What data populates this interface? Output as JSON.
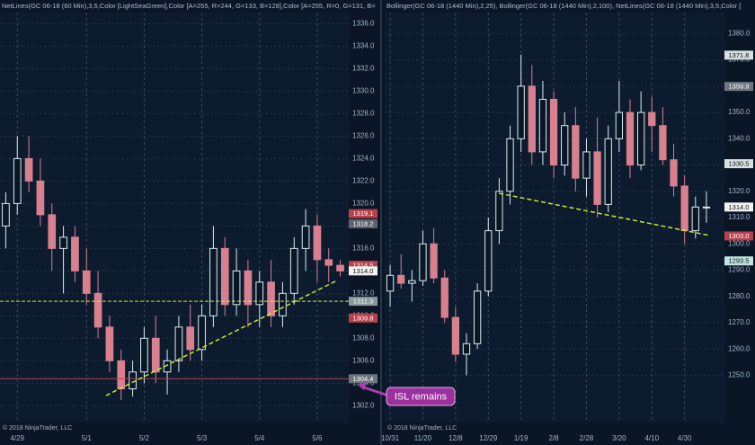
{
  "chart_data": [
    {
      "type": "candlestick",
      "title": "NetLines(GC 06-18 (60 Min),3,5,Color [LightSeaGreen],Color [A=255, R=244, G=133, B=128],Color [A=255, R=0, G=131, B=",
      "credit": "© 2018 NinjaTrader, LLC",
      "categories": [
        null,
        "4/29",
        null,
        null,
        null,
        null,
        null,
        "5/1",
        null,
        null,
        null,
        null,
        "5/2",
        null,
        null,
        null,
        null,
        "5/3",
        null,
        null,
        null,
        null,
        "5/4",
        null,
        null,
        null,
        null,
        "5/6",
        null,
        null
      ],
      "open": [
        1318,
        1320,
        1324,
        1322,
        1319,
        1316,
        1317,
        1314,
        1312,
        1309,
        1306,
        1303.5,
        1305,
        1308,
        1305,
        1306,
        1309,
        1307,
        1310,
        1316,
        1311,
        1314,
        1311,
        1313,
        1310,
        1312,
        1316,
        1318,
        1315,
        1314.5
      ],
      "high": [
        1321,
        1326,
        1326,
        1324,
        1320,
        1318,
        1318,
        1316,
        1314,
        1310,
        1307,
        1306,
        1309,
        1310,
        1307,
        1310,
        1311,
        1311,
        1318,
        1317,
        1316,
        1315,
        1314,
        1315,
        1313,
        1317,
        1319.5,
        1319,
        1316,
        1315
      ],
      "low": [
        1316,
        1319,
        1321,
        1318,
        1314,
        1312,
        1313,
        1311,
        1308,
        1305,
        1302.5,
        1302.8,
        1304,
        1304,
        1303,
        1305,
        1306,
        1306,
        1309,
        1310,
        1310,
        1309,
        1309,
        1309,
        1309,
        1311,
        1314,
        1313,
        1313,
        1313.5
      ],
      "close": [
        1320,
        1324,
        1322,
        1319,
        1316,
        1317,
        1314,
        1312,
        1309,
        1306,
        1303.5,
        1305,
        1308,
        1305,
        1306,
        1309,
        1307,
        1310,
        1316,
        1311,
        1314,
        1311,
        1313,
        1310,
        1312,
        1316,
        1318,
        1315,
        1314.5,
        1314
      ],
      "up_color": "#d8eef0",
      "down_color": "#d9808f",
      "ylim": [
        1300.5,
        1337
      ],
      "yticks": [
        {
          "value": 1302,
          "label": "1302.0"
        },
        {
          "value": 1304,
          "label": "1304.0"
        },
        {
          "value": 1306,
          "label": "1306.0"
        },
        {
          "value": 1308,
          "label": "1308.0"
        },
        {
          "value": 1310,
          "label": "1310.0"
        },
        {
          "value": 1312,
          "label": "1312.0"
        },
        {
          "value": 1314,
          "label": "1314.0"
        },
        {
          "value": 1316,
          "label": "1316.0"
        },
        {
          "value": 1318,
          "label": "1318.0"
        },
        {
          "value": 1320,
          "label": "1320.0"
        },
        {
          "value": 1322,
          "label": "1322.0"
        },
        {
          "value": 1324,
          "label": "1324.0"
        },
        {
          "value": 1326,
          "label": "1326.0"
        },
        {
          "value": 1328,
          "label": "1328.0"
        },
        {
          "value": 1330,
          "label": "1330.0"
        },
        {
          "value": 1332,
          "label": "1332.0"
        },
        {
          "value": 1334,
          "label": "1334.0"
        },
        {
          "value": 1336,
          "label": "1336.0"
        }
      ],
      "price_labels": [
        {
          "value": 1319.1,
          "label": "1319.1",
          "color": "#b8414b"
        },
        {
          "value": 1318.2,
          "label": "1318.2",
          "color": "#5d6670"
        },
        {
          "value": 1314.5,
          "label": "1314.5",
          "color": "#b8414b"
        },
        {
          "value": 1314,
          "label": "1314.0",
          "color": "#f2f2f2"
        },
        {
          "value": 1311.3,
          "label": "1311.3",
          "color": "#8a9a9a"
        },
        {
          "value": 1309.8,
          "label": "1309.8",
          "color": "#b8414b"
        },
        {
          "value": 1304.4,
          "label": "1304.4",
          "color": "#6d7780"
        }
      ],
      "grid": true
    },
    {
      "type": "candlestick",
      "title": "Bollinger(GC 06-18 (1440 Min),2,25), Bollinger(GC 06-18 (1440 Min),2,100), NetLines(GC 06-18 (1440 Min),3,5,Color [",
      "credit": "© 2018 NinjaTrader, LLC",
      "categories": [
        "10/31",
        null,
        null,
        "11/20",
        null,
        null,
        "12/8",
        null,
        null,
        "12/29",
        null,
        null,
        "1/19",
        null,
        null,
        "2/8",
        null,
        null,
        "2/28",
        null,
        null,
        "3/20",
        null,
        null,
        "4/10",
        null,
        null,
        "4/30",
        null,
        null
      ],
      "open": [
        1282,
        1288,
        1285,
        1286,
        1300,
        1287,
        1272,
        1258,
        1262,
        1282,
        1305,
        1320,
        1340,
        1360,
        1335,
        1355,
        1330,
        1345,
        1325,
        1335,
        1315,
        1340,
        1350,
        1330,
        1350,
        1345,
        1332,
        1322,
        1305,
        1314
      ],
      "high": [
        1292,
        1296,
        1290,
        1305,
        1306,
        1290,
        1276,
        1266,
        1285,
        1310,
        1325,
        1345,
        1372,
        1368,
        1362,
        1358,
        1350,
        1352,
        1340,
        1348,
        1345,
        1362,
        1355,
        1358,
        1356,
        1352,
        1338,
        1326,
        1318,
        1320
      ],
      "low": [
        1276,
        1283,
        1278,
        1284,
        1285,
        1270,
        1255,
        1250,
        1260,
        1280,
        1300,
        1315,
        1335,
        1330,
        1330,
        1325,
        1326,
        1320,
        1318,
        1310,
        1312,
        1335,
        1325,
        1328,
        1335,
        1330,
        1318,
        1300,
        1302,
        1308
      ],
      "close": [
        1288,
        1285,
        1286,
        1300,
        1287,
        1272,
        1258,
        1262,
        1282,
        1305,
        1320,
        1340,
        1360,
        1335,
        1355,
        1330,
        1345,
        1325,
        1335,
        1315,
        1340,
        1350,
        1330,
        1350,
        1345,
        1332,
        1322,
        1305,
        1314,
        1314
      ],
      "up_color": "#d8eef0",
      "down_color": "#d9808f",
      "ylim": [
        1232,
        1388
      ],
      "yticks": [
        {
          "value": 1250,
          "label": "1250.0"
        },
        {
          "value": 1260,
          "label": "1260.0"
        },
        {
          "value": 1270,
          "label": "1270.0"
        },
        {
          "value": 1280,
          "label": "1280.0"
        },
        {
          "value": 1290,
          "label": "1290.0"
        },
        {
          "value": 1300,
          "label": "1300.0"
        },
        {
          "value": 1310,
          "label": "1310.0"
        },
        {
          "value": 1320,
          "label": "1320.0"
        },
        {
          "value": 1330,
          "label": "1330.0"
        },
        {
          "value": 1340,
          "label": "1340.0"
        },
        {
          "value": 1350,
          "label": "1350.0"
        },
        {
          "value": 1360,
          "label": "1360.0"
        },
        {
          "value": 1370,
          "label": "1370.0"
        },
        {
          "value": 1380,
          "label": "1380.0"
        }
      ],
      "price_labels": [
        {
          "value": 1371.8,
          "label": "1371.8",
          "color": "#d7e0e0"
        },
        {
          "value": 1359.9,
          "label": "1359.9",
          "color": "#6d7780"
        },
        {
          "value": 1330.5,
          "label": "1330.5",
          "color": "#d7e0e0"
        },
        {
          "value": 1314,
          "label": "1314.0",
          "color": "#f2f2f2"
        },
        {
          "value": 1303,
          "label": "1303.0",
          "color": "#b8414b"
        },
        {
          "value": 1293.5,
          "label": "1293.5",
          "color": "#bfe3e0"
        }
      ],
      "grid": true
    }
  ],
  "annotation": "ISL remains"
}
